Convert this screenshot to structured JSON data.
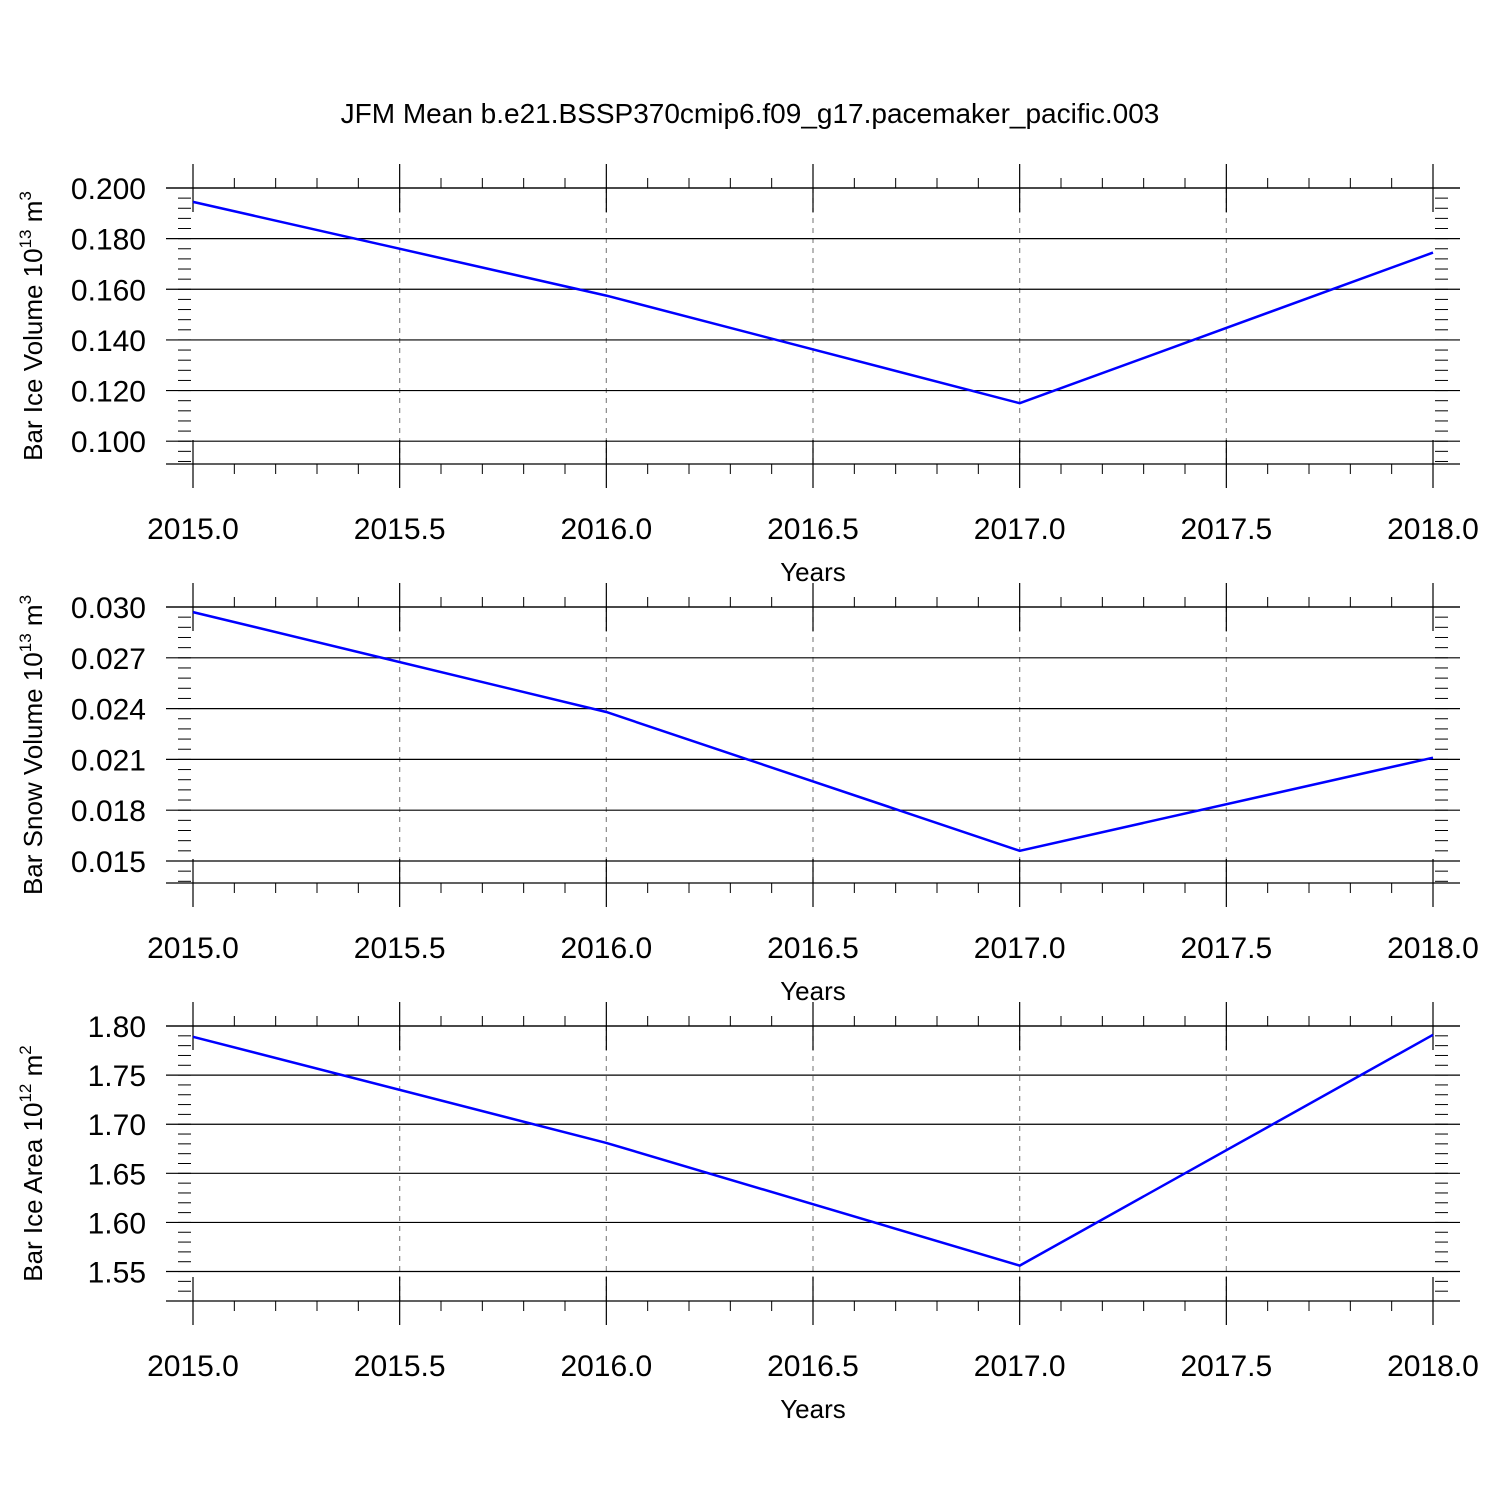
{
  "title": "JFM Mean b.e21.BSSP370cmip6.f09_g17.pacemaker_pacific.003",
  "colors": {
    "series": "#0000ff",
    "frame": "#000000",
    "grid": "#888888"
  },
  "chart_data": [
    {
      "type": "line",
      "xlabel": "Years",
      "ylabel": {
        "prefix": "Bar Ice Volume 10",
        "exponent": "13",
        "unit": " m",
        "unit_exponent": "3"
      },
      "xlim": [
        2015.0,
        2018.0
      ],
      "ylim": [
        0.091,
        0.2
      ],
      "x_ticks": [
        "2015.0",
        "2015.5",
        "2016.0",
        "2016.5",
        "2017.0",
        "2017.5",
        "2018.0"
      ],
      "y_ticks": [
        "0.100",
        "0.120",
        "0.140",
        "0.160",
        "0.180",
        "0.200"
      ],
      "x": [
        2015,
        2016,
        2017,
        2018
      ],
      "values": [
        0.1945,
        0.1575,
        0.115,
        0.1745
      ],
      "grid": "vertical dashed at x ticks"
    },
    {
      "type": "line",
      "xlabel": "Years",
      "ylabel": {
        "prefix": "Bar Snow Volume 10",
        "exponent": "13",
        "unit": " m",
        "unit_exponent": "3"
      },
      "xlim": [
        2015.0,
        2018.0
      ],
      "ylim": [
        0.0137,
        0.03
      ],
      "x_ticks": [
        "2015.0",
        "2015.5",
        "2016.0",
        "2016.5",
        "2017.0",
        "2017.5",
        "2018.0"
      ],
      "y_ticks": [
        "0.015",
        "0.018",
        "0.021",
        "0.024",
        "0.027",
        "0.030"
      ],
      "x": [
        2015,
        2016,
        2017,
        2018
      ],
      "values": [
        0.0297,
        0.0238,
        0.0156,
        0.0211
      ],
      "grid": "vertical dashed at x ticks"
    },
    {
      "type": "line",
      "xlabel": "Years",
      "ylabel": {
        "prefix": "Bar Ice Area 10",
        "exponent": "12",
        "unit": " m",
        "unit_exponent": "2"
      },
      "xlim": [
        2015.0,
        2018.0
      ],
      "ylim": [
        1.52,
        1.8
      ],
      "x_ticks": [
        "2015.0",
        "2015.5",
        "2016.0",
        "2016.5",
        "2017.0",
        "2017.5",
        "2018.0"
      ],
      "y_ticks": [
        "1.55",
        "1.60",
        "1.65",
        "1.70",
        "1.75",
        "1.80"
      ],
      "x": [
        2015,
        2016,
        2017,
        2018
      ],
      "values": [
        1.789,
        1.681,
        1.556,
        1.791
      ],
      "grid": "vertical dashed at x ticks"
    }
  ]
}
